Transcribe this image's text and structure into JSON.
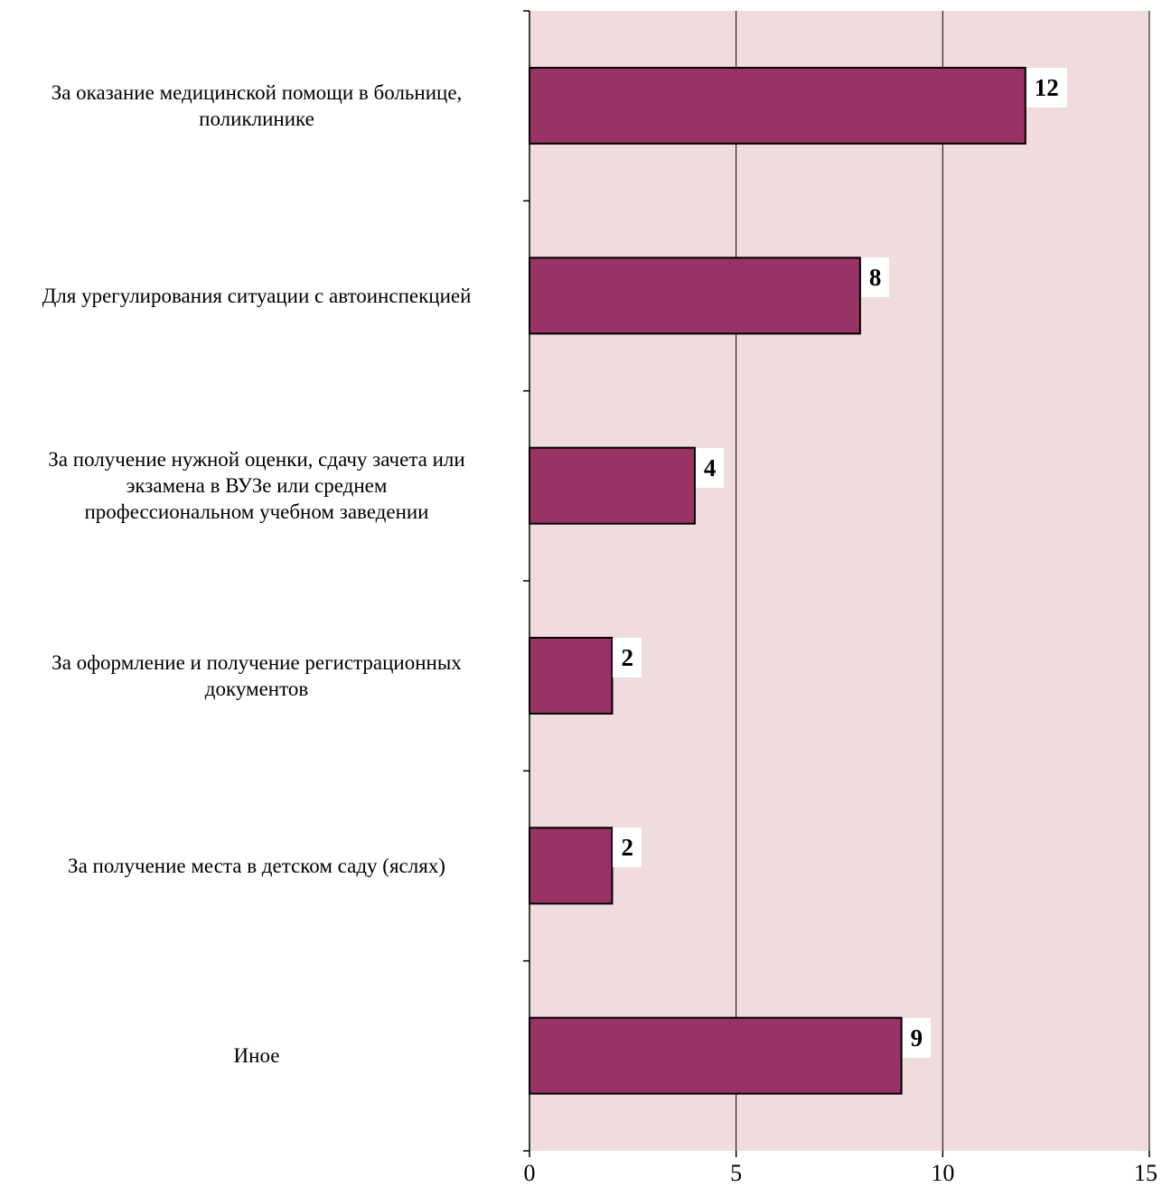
{
  "chart_data": {
    "type": "bar",
    "orientation": "horizontal",
    "categories": [
      "За оказание медицинской помощи в больнице, поликлинике",
      "Для урегулирования ситуации с автоинспекцией",
      "За получение нужной оценки, сдачу зачета или экзамена в ВУЗе или среднем профессиональном учебном заведении",
      "За оформление и получение регистрационных документов",
      "За получение места в детском саду (яслях)",
      "Иное"
    ],
    "category_lines": [
      [
        "За оказание медицинской помощи в больнице,",
        "поликлинике"
      ],
      [
        "Для урегулирования ситуации с автоинспекцией"
      ],
      [
        "За получение нужной оценки, сдачу зачета или",
        "экзамена в ВУЗе или среднем",
        "профессиональном учебном заведении"
      ],
      [
        "За оформление и получение регистрационных",
        "документов"
      ],
      [
        "За получение места в детском саду (яслях)"
      ],
      [
        "Иное"
      ]
    ],
    "values": [
      12,
      8,
      4,
      2,
      2,
      9
    ],
    "data_labels": [
      "12",
      "8",
      "4",
      "2",
      "2",
      "9"
    ],
    "xlim": [
      0,
      15
    ],
    "x_ticks": [
      0,
      5,
      10,
      15
    ],
    "x_tick_labels": [
      "0",
      "5",
      "10",
      "15"
    ],
    "title": "",
    "xlabel": "",
    "ylabel": "",
    "grid": true,
    "legend": "none",
    "colors": {
      "bar_fill": "#993366",
      "bar_stroke": "#000000",
      "plot_background": "#f0dcdc",
      "gridline": "#000000"
    }
  }
}
